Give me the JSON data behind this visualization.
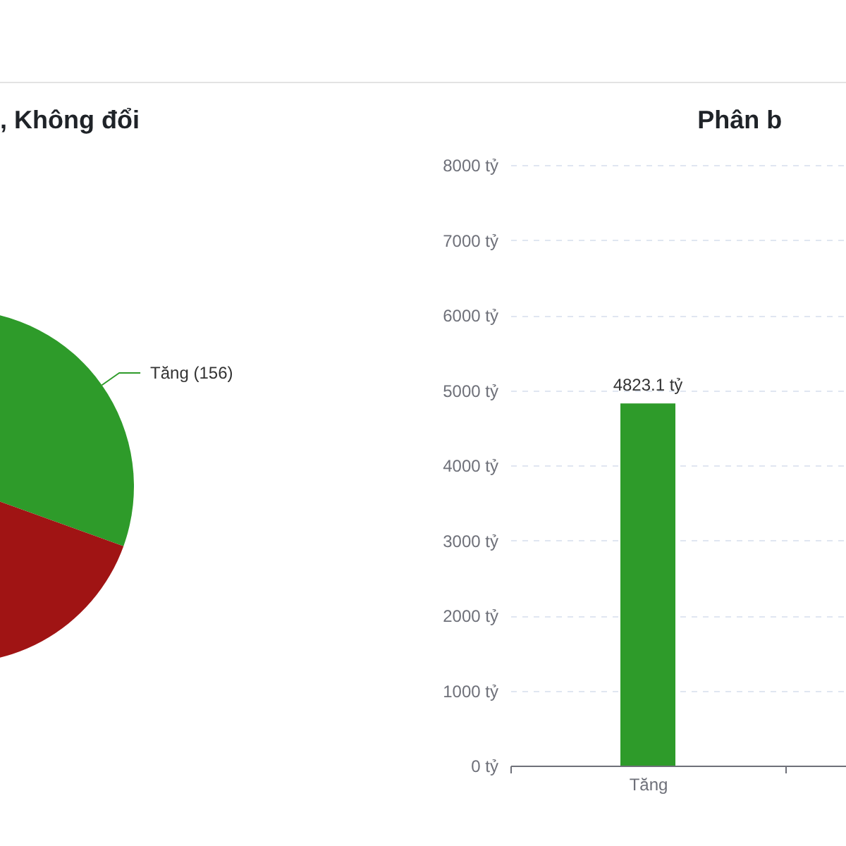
{
  "chart_data": [
    {
      "type": "pie",
      "title": ", Không đổi",
      "categories": [
        "Tăng (156)",
        null
      ],
      "values": [
        30.5,
        69.5
      ],
      "colors": [
        "#2e9b2a",
        "#a01414"
      ]
    },
    {
      "type": "bar",
      "title": "Phân b",
      "categories": [
        "Tăng",
        null
      ],
      "values": [
        4823.1,
        null
      ],
      "color": "#2e9b2a",
      "ylim": [
        0,
        8000
      ],
      "yticks": [
        {
          "value": 0,
          "label": "0 tỷ"
        },
        {
          "value": 1000,
          "label": "1000 tỷ"
        },
        {
          "value": 2000,
          "label": "2000 tỷ"
        },
        {
          "value": 3000,
          "label": "3000 tỷ"
        },
        {
          "value": 4000,
          "label": "4000 tỷ"
        },
        {
          "value": 5000,
          "label": "5000 tỷ"
        },
        {
          "value": 6000,
          "label": "6000 tỷ"
        },
        {
          "value": 7000,
          "label": "7000 tỷ"
        },
        {
          "value": 8000,
          "label": "8000 tỷ"
        }
      ],
      "grid": "y",
      "value_labels": [
        "4823.1 tỷ",
        null
      ]
    }
  ]
}
